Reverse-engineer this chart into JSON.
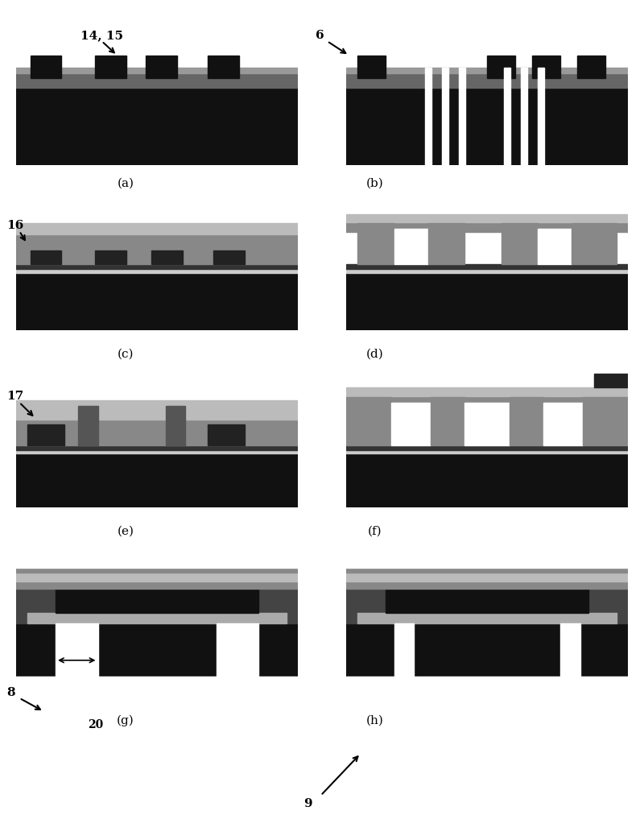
{
  "fig_width": 8.0,
  "fig_height": 10.43,
  "bg_color": "#ffffff",
  "panel_labels": [
    "(a)",
    "(b)",
    "(c)",
    "(d)",
    "(e)",
    "(f)",
    "(g)",
    "(h)"
  ],
  "colors": {
    "black": "#000000",
    "substrate": "#111111",
    "dark_gray": "#222222",
    "mid_gray": "#555555",
    "gray": "#666666",
    "light_gray": "#aaaaaa",
    "lighter_gray": "#bbbbbb",
    "white": "#ffffff",
    "oxide": "#888888",
    "bright": "#cccccc",
    "very_light": "#dddddd"
  }
}
